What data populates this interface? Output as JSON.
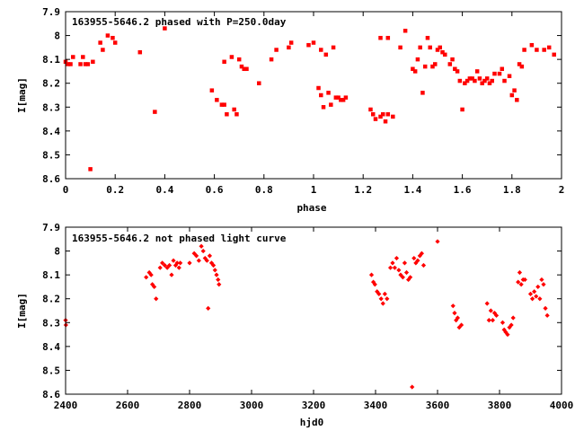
{
  "chart_data": [
    {
      "type": "scatter",
      "title": "163955-5646.2 phased with P=250.0day",
      "xlabel": "phase",
      "ylabel": "I[mag]",
      "xlim": [
        0,
        2
      ],
      "ylim": [
        8.6,
        7.9
      ],
      "y_inverted": true,
      "grid": false,
      "marker": "filled square",
      "color": "#ff0000",
      "x_ticks": [
        "0",
        "0.2",
        "0.4",
        "0.6",
        "0.8",
        "1",
        "1.2",
        "1.4",
        "1.6",
        "1.8",
        "2"
      ],
      "y_ticks": [
        "7.9",
        "8",
        "8.1",
        "8.2",
        "8.3",
        "8.4",
        "8.5",
        "8.6"
      ],
      "points": [
        [
          0.0,
          8.11
        ],
        [
          0.01,
          8.12
        ],
        [
          0.02,
          8.12
        ],
        [
          0.03,
          8.09
        ],
        [
          0.06,
          8.12
        ],
        [
          0.07,
          8.09
        ],
        [
          0.08,
          8.12
        ],
        [
          0.09,
          8.12
        ],
        [
          0.1,
          8.56
        ],
        [
          0.11,
          8.11
        ],
        [
          0.14,
          8.03
        ],
        [
          0.15,
          8.06
        ],
        [
          0.17,
          8.0
        ],
        [
          0.19,
          8.01
        ],
        [
          0.2,
          8.03
        ],
        [
          0.3,
          8.07
        ],
        [
          0.36,
          8.32
        ],
        [
          0.4,
          7.97
        ],
        [
          0.59,
          8.23
        ],
        [
          0.61,
          8.27
        ],
        [
          0.63,
          8.29
        ],
        [
          0.64,
          8.29
        ],
        [
          0.64,
          8.11
        ],
        [
          0.65,
          8.33
        ],
        [
          0.67,
          8.09
        ],
        [
          0.68,
          8.31
        ],
        [
          0.69,
          8.33
        ],
        [
          0.7,
          8.1
        ],
        [
          0.71,
          8.13
        ],
        [
          0.72,
          8.14
        ],
        [
          0.73,
          8.14
        ],
        [
          0.78,
          8.2
        ],
        [
          0.83,
          8.1
        ],
        [
          0.85,
          8.06
        ],
        [
          0.9,
          8.05
        ],
        [
          0.91,
          8.03
        ],
        [
          0.98,
          8.04
        ],
        [
          1.0,
          8.03
        ],
        [
          1.02,
          8.22
        ],
        [
          1.03,
          8.25
        ],
        [
          1.03,
          8.06
        ],
        [
          1.04,
          8.3
        ],
        [
          1.05,
          8.08
        ],
        [
          1.06,
          8.24
        ],
        [
          1.07,
          8.29
        ],
        [
          1.08,
          8.05
        ],
        [
          1.09,
          8.26
        ],
        [
          1.1,
          8.26
        ],
        [
          1.11,
          8.27
        ],
        [
          1.12,
          8.27
        ],
        [
          1.13,
          8.26
        ],
        [
          1.23,
          8.31
        ],
        [
          1.24,
          8.33
        ],
        [
          1.25,
          8.35
        ],
        [
          1.27,
          8.34
        ],
        [
          1.28,
          8.33
        ],
        [
          1.29,
          8.36
        ],
        [
          1.3,
          8.33
        ],
        [
          1.27,
          8.01
        ],
        [
          1.3,
          8.01
        ],
        [
          1.32,
          8.34
        ],
        [
          1.35,
          8.05
        ],
        [
          1.37,
          7.98
        ],
        [
          1.4,
          8.14
        ],
        [
          1.41,
          8.15
        ],
        [
          1.42,
          8.1
        ],
        [
          1.43,
          8.05
        ],
        [
          1.44,
          8.24
        ],
        [
          1.45,
          8.13
        ],
        [
          1.46,
          8.01
        ],
        [
          1.47,
          8.05
        ],
        [
          1.48,
          8.13
        ],
        [
          1.49,
          8.12
        ],
        [
          1.5,
          8.06
        ],
        [
          1.51,
          8.05
        ],
        [
          1.52,
          8.07
        ],
        [
          1.53,
          8.08
        ],
        [
          1.55,
          8.12
        ],
        [
          1.56,
          8.1
        ],
        [
          1.57,
          8.14
        ],
        [
          1.58,
          8.15
        ],
        [
          1.59,
          8.19
        ],
        [
          1.6,
          8.31
        ],
        [
          1.61,
          8.2
        ],
        [
          1.62,
          8.19
        ],
        [
          1.63,
          8.18
        ],
        [
          1.64,
          8.18
        ],
        [
          1.65,
          8.19
        ],
        [
          1.66,
          8.15
        ],
        [
          1.67,
          8.18
        ],
        [
          1.68,
          8.2
        ],
        [
          1.69,
          8.19
        ],
        [
          1.7,
          8.18
        ],
        [
          1.71,
          8.2
        ],
        [
          1.72,
          8.19
        ],
        [
          1.73,
          8.16
        ],
        [
          1.75,
          8.16
        ],
        [
          1.76,
          8.14
        ],
        [
          1.77,
          8.19
        ],
        [
          1.79,
          8.17
        ],
        [
          1.8,
          8.25
        ],
        [
          1.81,
          8.23
        ],
        [
          1.82,
          8.27
        ],
        [
          1.83,
          8.12
        ],
        [
          1.84,
          8.13
        ],
        [
          1.85,
          8.06
        ],
        [
          1.88,
          8.04
        ],
        [
          1.9,
          8.06
        ],
        [
          1.93,
          8.06
        ],
        [
          1.95,
          8.05
        ],
        [
          1.97,
          8.08
        ]
      ]
    },
    {
      "type": "scatter",
      "title": "163955-5646.2 not phased light curve",
      "xlabel": "hjd0",
      "ylabel": "I[mag]",
      "xlim": [
        2400,
        4000
      ],
      "ylim": [
        8.6,
        7.9
      ],
      "y_inverted": true,
      "grid": false,
      "marker": "filled diamond",
      "color": "#ff0000",
      "x_ticks": [
        "2400",
        "2600",
        "2800",
        "3000",
        "3200",
        "3400",
        "3600",
        "3800",
        "4000"
      ],
      "y_ticks": [
        "7.9",
        "8",
        "8.1",
        "8.2",
        "8.3",
        "8.4",
        "8.5",
        "8.6"
      ],
      "points": [
        [
          2400,
          8.29
        ],
        [
          2401,
          8.31
        ],
        [
          2660,
          8.11
        ],
        [
          2670,
          8.09
        ],
        [
          2676,
          8.1
        ],
        [
          2680,
          8.14
        ],
        [
          2686,
          8.15
        ],
        [
          2692,
          8.2
        ],
        [
          2705,
          8.07
        ],
        [
          2712,
          8.05
        ],
        [
          2720,
          8.06
        ],
        [
          2728,
          8.07
        ],
        [
          2735,
          8.06
        ],
        [
          2742,
          8.1
        ],
        [
          2748,
          8.04
        ],
        [
          2755,
          8.06
        ],
        [
          2760,
          8.05
        ],
        [
          2766,
          8.07
        ],
        [
          2770,
          8.05
        ],
        [
          2800,
          8.05
        ],
        [
          2815,
          8.01
        ],
        [
          2822,
          8.02
        ],
        [
          2830,
          8.04
        ],
        [
          2838,
          7.98
        ],
        [
          2844,
          8.0
        ],
        [
          2850,
          8.03
        ],
        [
          2856,
          8.04
        ],
        [
          2860,
          8.24
        ],
        [
          2865,
          8.02
        ],
        [
          2871,
          8.05
        ],
        [
          2877,
          8.06
        ],
        [
          2882,
          8.08
        ],
        [
          2887,
          8.1
        ],
        [
          2892,
          8.12
        ],
        [
          2895,
          8.14
        ],
        [
          3387,
          8.1
        ],
        [
          3393,
          8.13
        ],
        [
          3398,
          8.14
        ],
        [
          3405,
          8.17
        ],
        [
          3411,
          8.18
        ],
        [
          3418,
          8.2
        ],
        [
          3424,
          8.22
        ],
        [
          3430,
          8.18
        ],
        [
          3437,
          8.2
        ],
        [
          3448,
          8.07
        ],
        [
          3455,
          8.05
        ],
        [
          3462,
          8.07
        ],
        [
          3468,
          8.03
        ],
        [
          3475,
          8.08
        ],
        [
          3481,
          8.1
        ],
        [
          3488,
          8.11
        ],
        [
          3494,
          8.05
        ],
        [
          3500,
          8.09
        ],
        [
          3506,
          8.12
        ],
        [
          3512,
          8.11
        ],
        [
          3518,
          8.57
        ],
        [
          3524,
          8.03
        ],
        [
          3530,
          8.05
        ],
        [
          3536,
          8.04
        ],
        [
          3543,
          8.02
        ],
        [
          3549,
          8.01
        ],
        [
          3555,
          8.06
        ],
        [
          3600,
          7.96
        ],
        [
          3650,
          8.23
        ],
        [
          3655,
          8.26
        ],
        [
          3660,
          8.29
        ],
        [
          3665,
          8.28
        ],
        [
          3670,
          8.32
        ],
        [
          3677,
          8.31
        ],
        [
          3760,
          8.22
        ],
        [
          3766,
          8.29
        ],
        [
          3772,
          8.25
        ],
        [
          3778,
          8.29
        ],
        [
          3784,
          8.26
        ],
        [
          3790,
          8.27
        ],
        [
          3810,
          8.3
        ],
        [
          3815,
          8.33
        ],
        [
          3820,
          8.34
        ],
        [
          3826,
          8.35
        ],
        [
          3832,
          8.32
        ],
        [
          3838,
          8.31
        ],
        [
          3844,
          8.28
        ],
        [
          3860,
          8.13
        ],
        [
          3865,
          8.09
        ],
        [
          3870,
          8.14
        ],
        [
          3876,
          8.12
        ],
        [
          3882,
          8.12
        ],
        [
          3900,
          8.18
        ],
        [
          3906,
          8.2
        ],
        [
          3912,
          8.17
        ],
        [
          3918,
          8.19
        ],
        [
          3924,
          8.15
        ],
        [
          3930,
          8.2
        ],
        [
          3936,
          8.12
        ],
        [
          3942,
          8.14
        ],
        [
          3948,
          8.24
        ],
        [
          3954,
          8.27
        ]
      ]
    }
  ]
}
